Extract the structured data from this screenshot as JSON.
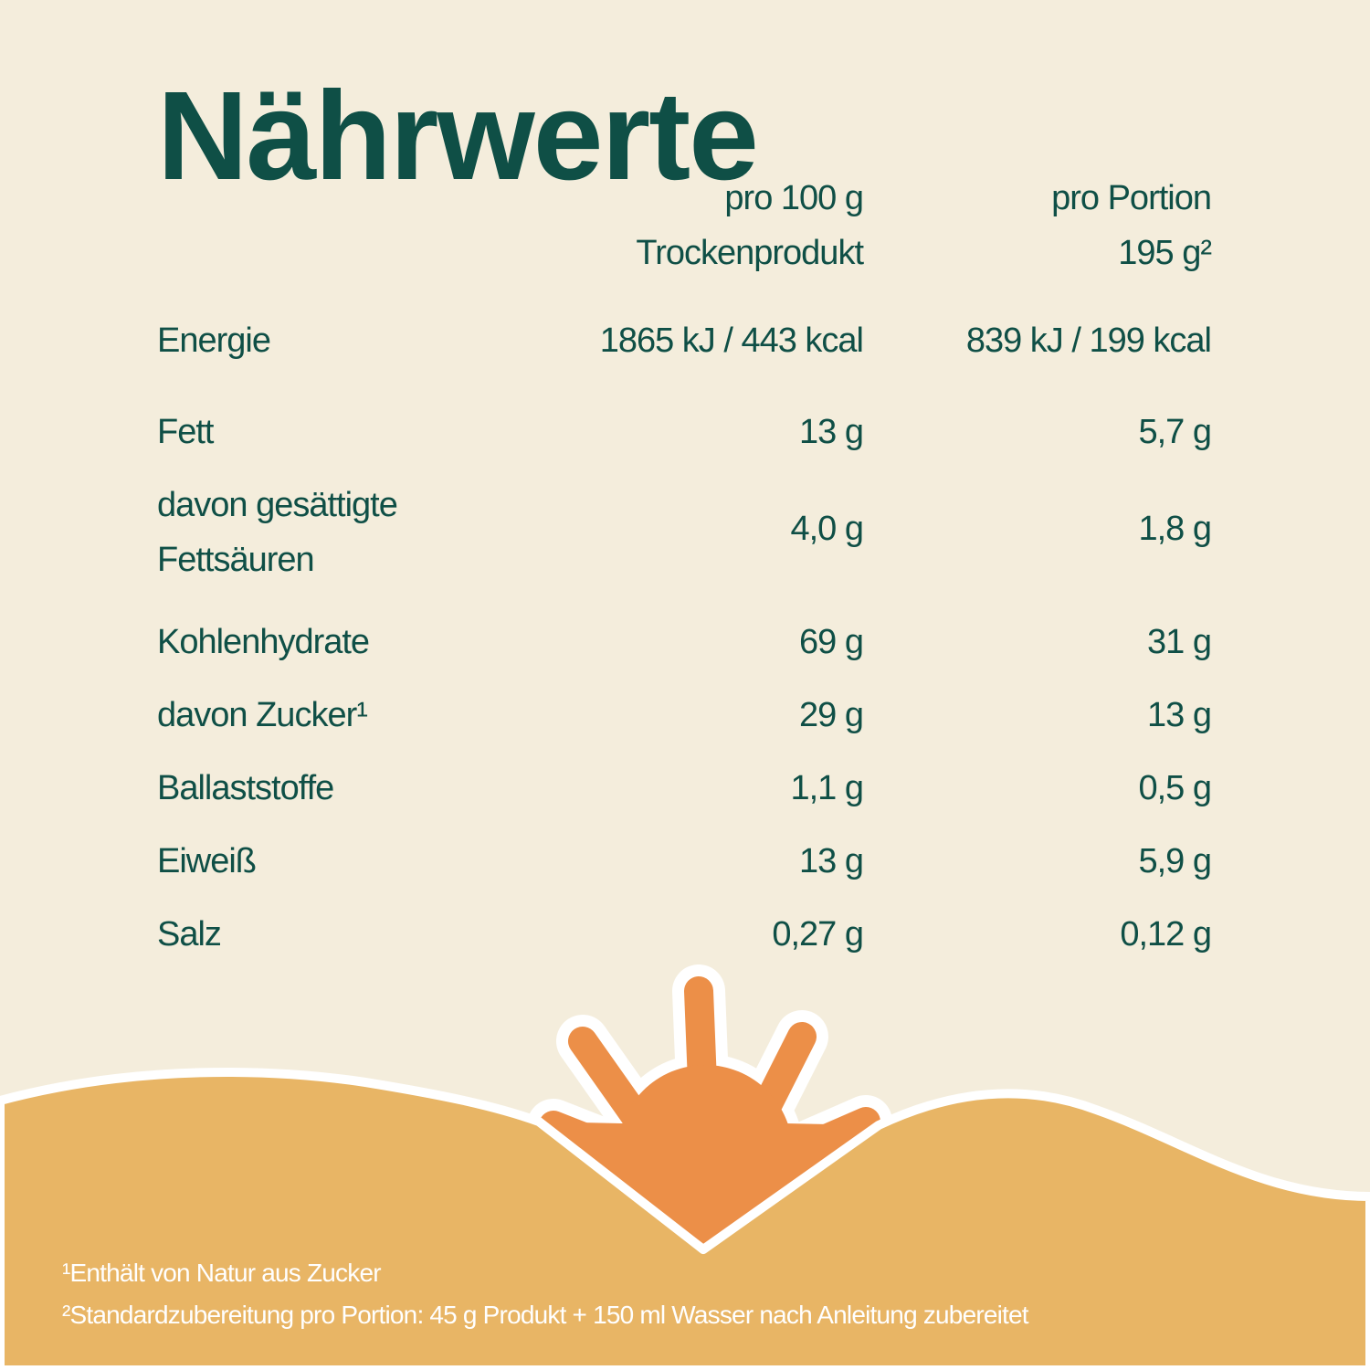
{
  "title": "Nährwerte",
  "columns": {
    "col1_line1": "pro 100 g",
    "col1_line2": "Trockenprodukt",
    "col2_line1": "pro Portion",
    "col2_line2": "195 g²"
  },
  "rows": [
    {
      "label": "Energie",
      "per100": "1865 kJ / 443 kcal",
      "perPortion": "839 kJ / 199 kcal"
    },
    {
      "label": "Fett",
      "per100": "13 g",
      "perPortion": "5,7 g"
    },
    {
      "label": "davon gesättigte",
      "label2": "Fettsäuren",
      "per100": "4,0 g",
      "perPortion": "1,8 g"
    },
    {
      "label": "Kohlenhydrate",
      "per100": "69 g",
      "perPortion": "31 g"
    },
    {
      "label": "davon Zucker¹",
      "per100": "29 g",
      "perPortion": "13 g"
    },
    {
      "label": "Ballaststoffe",
      "per100": "1,1 g",
      "perPortion": "0,5 g"
    },
    {
      "label": "Eiweiß",
      "per100": "13 g",
      "perPortion": "5,9 g"
    },
    {
      "label": "Salz",
      "per100": "0,27 g",
      "perPortion": "0,12 g"
    }
  ],
  "footnotes": [
    "¹Enthält von Natur aus Zucker",
    "²Standardzubereitung pro Portion: 45 g Produkt + 150 ml Wasser nach Anleitung zubereitet"
  ],
  "colors": {
    "background": "#f4eddc",
    "text": "#0f4f46",
    "sand": "#e8b565",
    "sun": "#ec8f48"
  },
  "icons": [
    "sun-icon"
  ]
}
